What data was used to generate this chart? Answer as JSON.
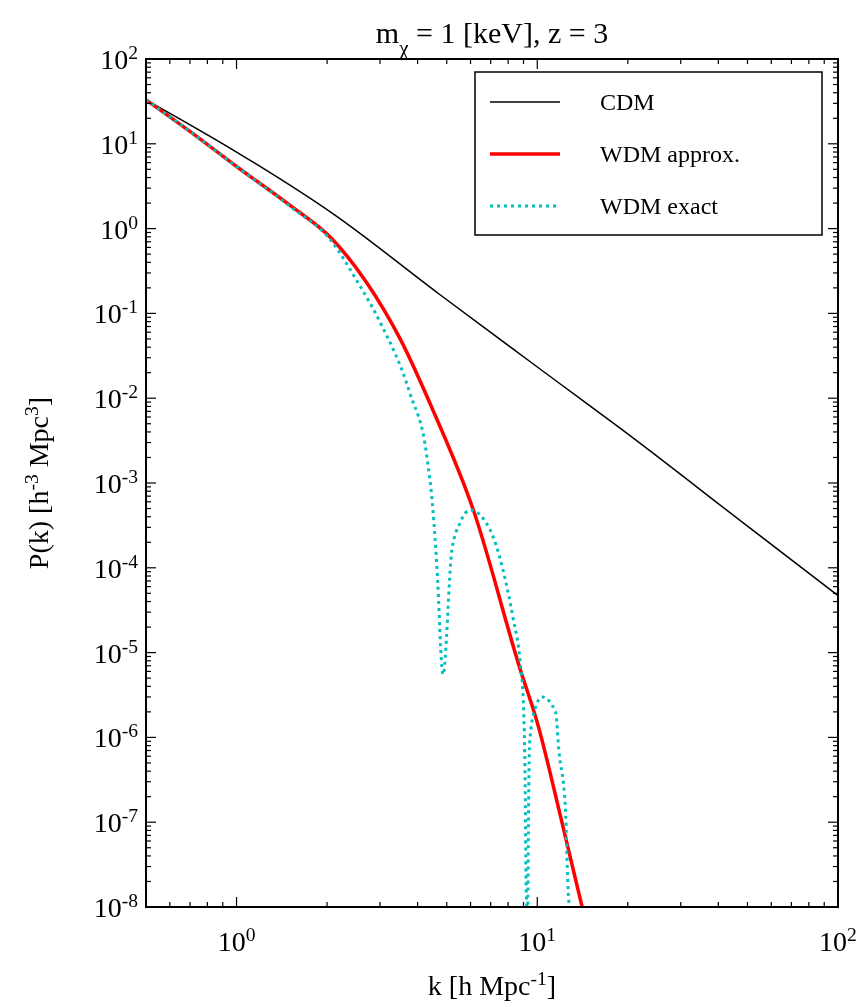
{
  "chart_data": {
    "type": "line",
    "title": "m$_{χ}$ = 1 [keV],  z = 3",
    "xlabel": "k [h Mpc$^{-1}$]",
    "ylabel": "P(k) [h$^{-3}$ Mpc$^{3}$]",
    "log": "xy",
    "grid": false,
    "legend": "top right",
    "xlim": [
      0.5,
      100
    ],
    "ylim": [
      1e-08,
      100
    ],
    "xticks": [
      {
        "value": 1,
        "label": "10$^{0}$"
      },
      {
        "value": 10,
        "label": "10$^{1}$"
      },
      {
        "value": 100,
        "label": "10$^{2}$"
      }
    ],
    "yticks": [
      {
        "value": 1e-08,
        "label": "10$^{-8}$"
      },
      {
        "value": 1e-07,
        "label": "10$^{-7}$"
      },
      {
        "value": 1e-06,
        "label": "10$^{-6}$"
      },
      {
        "value": 1e-05,
        "label": "10$^{-5}$"
      },
      {
        "value": 0.0001,
        "label": "10$^{-4}$"
      },
      {
        "value": 0.001,
        "label": "10$^{-3}$"
      },
      {
        "value": 0.01,
        "label": "10$^{-2}$"
      },
      {
        "value": 0.1,
        "label": "10$^{-1}$"
      },
      {
        "value": 1,
        "label": "10$^{0}$"
      },
      {
        "value": 10,
        "label": "10$^{1}$"
      },
      {
        "value": 100,
        "label": "10$^{2}$"
      }
    ],
    "series": [
      {
        "name": "CDM",
        "color": "#000000",
        "line_style": "solid",
        "x": [
          0.5,
          1,
          2.09,
          4.75,
          11.9,
          18.9,
          50,
          100
        ],
        "values": [
          33,
          8.0,
          1.5,
          0.166,
          0.0148,
          0.0044,
          0.00031,
          4.7e-05
        ]
      },
      {
        "name": "WDM approx.",
        "color": "#ff0000",
        "line_style": "solid",
        "x": [
          0.5,
          0.7,
          1,
          1.5,
          2.09,
          2.71,
          3.5,
          4.5,
          6.13,
          8.78,
          10,
          12,
          14.1
        ],
        "values": [
          33,
          14,
          5.4,
          1.9,
          0.74,
          0.23,
          0.05,
          0.0072,
          0.00048,
          6.3e-06,
          1.5e-06,
          1.1e-07,
          1e-08
        ]
      },
      {
        "name": "WDM exact",
        "color": "#00bfbf",
        "line_style": "dotted",
        "x": [
          0.5,
          0.7,
          1,
          1.5,
          2.09,
          2.5,
          3.0,
          3.77,
          4.3,
          4.5,
          4.64,
          4.86,
          5.2,
          5.54,
          5.98,
          6.97,
          7.7,
          8.3,
          8.78,
          8.98,
          9.1,
          9.2,
          9.25,
          9.3,
          9.34,
          9.43,
          9.8,
          10.4,
          11.5,
          11.8,
          12.4,
          12.7,
          12.8
        ],
        "values": [
          33,
          14,
          5.4,
          1.85,
          0.68,
          0.25,
          0.079,
          0.0115,
          0.002,
          0.00048,
          0.0001,
          5.5e-06,
          0.00016,
          0.00034,
          0.00048,
          0.00028,
          9.3e-05,
          2.6e-05,
          7.6e-06,
          2.8e-06,
          4.5e-07,
          1.3e-08,
          1e-08,
          1e-08,
          7.4e-08,
          8.5e-07,
          2.1e-06,
          3e-06,
          2e-06,
          7e-07,
          1.5e-07,
          1.3e-08,
          1e-08
        ]
      }
    ]
  }
}
